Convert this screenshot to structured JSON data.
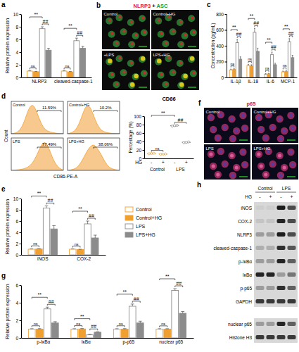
{
  "chart_data": [
    {
      "panel": "a",
      "type": "bar",
      "y_label": "Relative protein expression",
      "categories": [
        "NLRP3",
        "cleaved-caspase-1"
      ],
      "ylim": [
        0,
        10
      ],
      "yticks": [
        0,
        2,
        4,
        6,
        8,
        10
      ],
      "series": [
        {
          "color": "#f0a030",
          "marker": "open",
          "values": [
            1,
            1
          ],
          "errors": [
            0.05,
            0.05
          ]
        },
        {
          "color": "#f0a030",
          "marker": "filled",
          "values": [
            0.9,
            0.88
          ],
          "errors": [
            0.06,
            0.05
          ]
        },
        {
          "color": "#8c8c8c",
          "marker": "open",
          "values": [
            7.7,
            5.8
          ],
          "errors": [
            0.3,
            0.4
          ]
        },
        {
          "color": "#8c8c8c",
          "marker": "filled",
          "values": [
            4.3,
            4.6
          ],
          "errors": [
            0.3,
            0.3
          ]
        }
      ],
      "annotations": [
        [
          "ns",
          "**",
          "##"
        ],
        [
          "ns",
          "**",
          "##"
        ]
      ]
    },
    {
      "panel": "c",
      "type": "bar",
      "y_label": "Concentration (pg/mL)",
      "categories": [
        "IL-1β",
        "IL-18",
        "IL-6",
        "MCP-1"
      ],
      "ylim": [
        0,
        800
      ],
      "yticks": [
        0,
        200,
        400,
        600,
        800
      ],
      "series": [
        {
          "color": "#f0a030",
          "marker": "open",
          "values": [
            95,
            150,
            40,
            70
          ],
          "errors": [
            10,
            15,
            8,
            10
          ]
        },
        {
          "color": "#f0a030",
          "marker": "filled",
          "values": [
            100,
            145,
            45,
            75
          ],
          "errors": [
            10,
            15,
            8,
            10
          ]
        },
        {
          "color": "#8c8c8c",
          "marker": "open",
          "values": [
            440,
            570,
            290,
            450
          ],
          "errors": [
            40,
            50,
            30,
            40
          ]
        },
        {
          "color": "#8c8c8c",
          "marker": "filled",
          "values": [
            230,
            330,
            160,
            250
          ],
          "errors": [
            30,
            40,
            20,
            30
          ]
        }
      ],
      "annotations": [
        [
          "ns",
          "**",
          "##"
        ],
        [
          "ns",
          "**",
          "##"
        ],
        [
          "ns",
          "**",
          "##"
        ],
        [
          "ns",
          "**",
          "##"
        ]
      ]
    },
    {
      "panel": "d",
      "type": "area",
      "x_label": "CD86-PE-A",
      "y_label": "Count",
      "tick_labels": false,
      "color": "#f0a030",
      "ylim": [
        0,
        110
      ],
      "series": [
        {
          "name": "Control",
          "gate_label": "11.59%",
          "values": [
            0,
            2,
            8,
            25,
            60,
            95,
            100,
            70,
            35,
            15,
            8,
            4,
            2,
            1,
            0
          ]
        },
        {
          "name": "Control+HG",
          "gate_label": "10.2%",
          "values": [
            0,
            3,
            10,
            30,
            65,
            98,
            95,
            62,
            30,
            12,
            6,
            3,
            1,
            1,
            0
          ]
        },
        {
          "name": "LPS",
          "gate_label": "77.49%",
          "values": [
            0,
            1,
            2,
            4,
            8,
            15,
            30,
            55,
            85,
            100,
            80,
            45,
            20,
            6,
            1
          ]
        },
        {
          "name": "LPS+HG",
          "gate_label": "38.06%",
          "values": [
            0,
            2,
            5,
            15,
            35,
            60,
            80,
            90,
            75,
            55,
            30,
            12,
            5,
            2,
            0
          ]
        }
      ]
    },
    {
      "type": "dot",
      "title": "CD86",
      "y_label": "Percentage (%)",
      "x_label": "HG",
      "categories": [
        "-",
        "+",
        "-",
        "+"
      ],
      "groups": [
        "Control",
        "LPS"
      ],
      "ylim": [
        0,
        100
      ],
      "yticks": [
        0,
        20,
        40,
        60,
        80,
        100
      ],
      "colors": [
        "#f0a030",
        "#f0a030",
        "#8c8c8c",
        "#8c8c8c"
      ],
      "values": [
        11.59,
        10.2,
        77.49,
        38.06
      ],
      "errors": [
        0.8,
        0.5,
        1.2,
        1.0
      ],
      "points": [
        [
          11.0,
          11.6,
          12.2
        ],
        [
          9.8,
          10.2,
          10.6
        ],
        [
          76.5,
          77.5,
          78.5
        ],
        [
          37.2,
          38.0,
          39.0
        ]
      ],
      "annotations": [
        "ns",
        "**",
        "##"
      ]
    },
    {
      "panel": "e",
      "type": "bar",
      "y_label": "Relative protein expression",
      "categories": [
        "iNOS",
        "COX-2"
      ],
      "legend": "right",
      "ylim": [
        0,
        10
      ],
      "yticks": [
        0,
        2,
        4,
        6,
        8,
        10
      ],
      "series": [
        {
          "name": "Control",
          "color": "#f0a030",
          "marker": "open",
          "values": [
            1,
            1
          ],
          "errors": [
            0.05,
            0.05
          ]
        },
        {
          "name": "Control+HG",
          "color": "#f0a030",
          "marker": "filled",
          "values": [
            1.05,
            0.95
          ],
          "errors": [
            0.06,
            0.05
          ]
        },
        {
          "name": "LPS",
          "color": "#8c8c8c",
          "marker": "open",
          "values": [
            8.3,
            5.5
          ],
          "errors": [
            0.4,
            0.5
          ]
        },
        {
          "name": "LPS+HG",
          "color": "#8c8c8c",
          "marker": "filled",
          "values": [
            4.6,
            3.0
          ],
          "errors": [
            0.6,
            0.5
          ]
        }
      ],
      "annotations": [
        [
          "ns",
          "**",
          "##"
        ],
        [
          "ns",
          "**",
          "##"
        ]
      ]
    },
    {
      "panel": "g",
      "type": "bar",
      "y_label": "Relative protein expression",
      "categories": [
        "p-IκBα",
        "IκBα",
        "p-p65",
        "nuclear p65"
      ],
      "ylim": [
        0,
        6
      ],
      "yticks": [
        0,
        2,
        4,
        6
      ],
      "series": [
        {
          "color": "#f0a030",
          "marker": "open",
          "values": [
            1,
            1,
            1,
            1
          ],
          "errors": [
            0.05,
            0.05,
            0.05,
            0.05
          ]
        },
        {
          "color": "#f0a030",
          "marker": "filled",
          "values": [
            1.0,
            1.02,
            1.0,
            1.0
          ],
          "errors": [
            0.06,
            0.05,
            0.06,
            0.05
          ]
        },
        {
          "color": "#8c8c8c",
          "marker": "open",
          "values": [
            3.3,
            0.35,
            3.6,
            5.4
          ],
          "errors": [
            0.2,
            0.05,
            0.25,
            0.2
          ]
        },
        {
          "color": "#8c8c8c",
          "marker": "filled",
          "values": [
            1.7,
            0.65,
            1.7,
            2.8
          ],
          "errors": [
            0.15,
            0.05,
            0.2,
            0.2
          ]
        }
      ],
      "annotations": [
        [
          "ns",
          "**",
          "##"
        ],
        [
          "ns",
          "**",
          "##"
        ],
        [
          "ns",
          "**",
          "##"
        ],
        [
          "ns",
          "**",
          "##"
        ]
      ]
    }
  ],
  "images": [
    {
      "panel": "b",
      "title": [
        "NLRP3",
        "+",
        "ASC"
      ],
      "tiles": [
        "Control",
        "Control+HG",
        "+LPS",
        "LPS+HG"
      ]
    },
    {
      "panel": "f",
      "title": [
        "p65"
      ],
      "tiles": [
        "Control",
        "Control+HG",
        "LPS",
        "LPS+HG"
      ]
    }
  ],
  "blot": {
    "panel": "h",
    "groups": [
      "Control",
      "LPS"
    ],
    "treatment": "HG",
    "lanes": [
      "-",
      "+",
      "-",
      "+"
    ],
    "rows": [
      {
        "label": "iNOS",
        "intensity": [
          0.05,
          0.05,
          0.95,
          0.7
        ]
      },
      {
        "label": "COX-2",
        "intensity": [
          0.1,
          0.1,
          0.9,
          0.7
        ]
      },
      {
        "label": "NLRP3",
        "intensity": [
          0.3,
          0.3,
          0.95,
          0.7
        ]
      },
      {
        "label": "cleaved-caspase-1",
        "intensity": [
          0.2,
          0.2,
          0.85,
          0.65
        ]
      },
      {
        "label": "p-IκBα",
        "intensity": [
          0.3,
          0.3,
          0.9,
          0.6
        ]
      },
      {
        "label": "IκBα",
        "intensity": [
          0.9,
          0.9,
          0.3,
          0.5
        ]
      },
      {
        "label": "p-p65",
        "intensity": [
          0.3,
          0.3,
          0.85,
          0.6
        ]
      },
      {
        "label": "GAPDH",
        "intensity": [
          0.8,
          0.8,
          0.8,
          0.8
        ]
      }
    ],
    "nuclear_rows": [
      {
        "label": "nuclear p65",
        "intensity": [
          0.3,
          0.3,
          0.9,
          0.6
        ]
      },
      {
        "label": "Histone H3",
        "intensity": [
          0.8,
          0.8,
          0.8,
          0.8
        ]
      }
    ]
  }
}
